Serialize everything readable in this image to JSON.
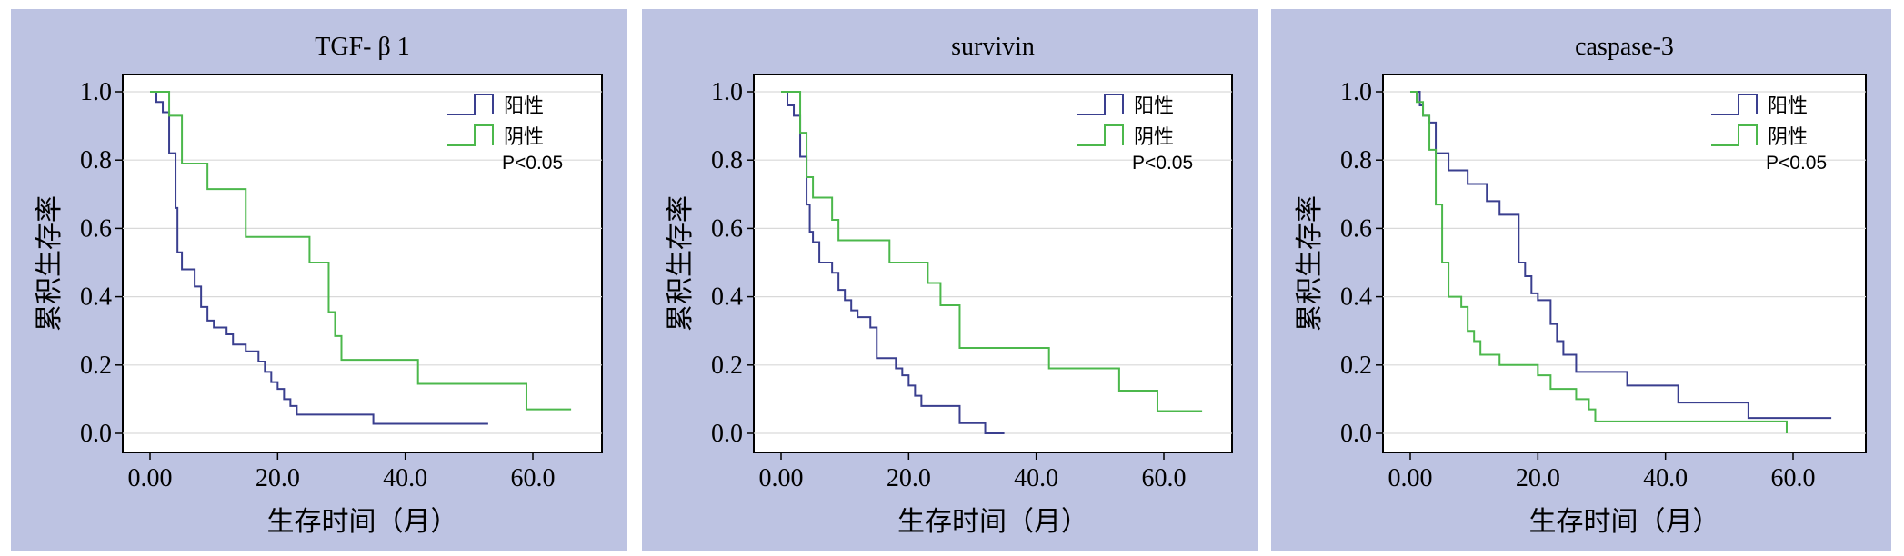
{
  "chart_data": [
    {
      "type": "line",
      "title": "TGF- β 1",
      "xlabel": "生存时间（月）",
      "ylabel": "累积生存率",
      "xlim": [
        0,
        60
      ],
      "ylim": [
        0,
        1.0
      ],
      "xticks": [
        "0.00",
        "20.0",
        "40.0",
        "60.0"
      ],
      "yticks": [
        "0.0",
        "0.2",
        "0.4",
        "0.6",
        "0.8",
        "1.0"
      ],
      "legend": "top-right",
      "pvalue": "P<0.05",
      "series": [
        {
          "name": "阳性",
          "color": "#3a3f8f",
          "x": [
            0,
            1,
            2,
            3,
            4,
            4.3,
            5,
            6,
            7,
            8,
            9,
            10,
            12,
            13,
            15,
            17,
            18,
            19,
            20,
            21,
            22,
            23,
            35,
            53
          ],
          "y": [
            1.0,
            0.97,
            0.94,
            0.82,
            0.66,
            0.53,
            0.48,
            0.48,
            0.43,
            0.37,
            0.33,
            0.31,
            0.29,
            0.26,
            0.24,
            0.21,
            0.18,
            0.15,
            0.13,
            0.1,
            0.08,
            0.055,
            0.028,
            0.028
          ]
        },
        {
          "name": "阴性",
          "color": "#4cb84c",
          "x": [
            0,
            3,
            5,
            9,
            15,
            25,
            28,
            29,
            30,
            42,
            59,
            66
          ],
          "y": [
            1.0,
            0.93,
            0.79,
            0.715,
            0.575,
            0.5,
            0.355,
            0.285,
            0.215,
            0.145,
            0.07,
            0.07
          ]
        }
      ]
    },
    {
      "type": "line",
      "title": "survivin",
      "xlabel": "生存时间（月）",
      "ylabel": "累积生存率",
      "xlim": [
        0,
        60
      ],
      "ylim": [
        0,
        1.0
      ],
      "xticks": [
        "0.00",
        "20.0",
        "40.0",
        "60.0"
      ],
      "yticks": [
        "0.0",
        "0.2",
        "0.4",
        "0.6",
        "0.8",
        "1.0"
      ],
      "legend": "top-right",
      "pvalue": "P<0.05",
      "series": [
        {
          "name": "阳性",
          "color": "#3a3f8f",
          "x": [
            0,
            1,
            2,
            3,
            4,
            4.5,
            5,
            6,
            8,
            9,
            10,
            11,
            12,
            14,
            15,
            18,
            19,
            20,
            21,
            22,
            23,
            28,
            32,
            35
          ],
          "y": [
            1.0,
            0.96,
            0.93,
            0.81,
            0.67,
            0.59,
            0.56,
            0.5,
            0.47,
            0.42,
            0.39,
            0.36,
            0.34,
            0.31,
            0.22,
            0.19,
            0.17,
            0.14,
            0.11,
            0.08,
            0.08,
            0.03,
            0.0,
            0.0
          ]
        },
        {
          "name": "阴性",
          "color": "#4cb84c",
          "x": [
            0,
            3,
            4,
            5,
            8,
            9,
            14,
            17,
            23,
            25,
            28,
            42,
            53,
            59,
            66
          ],
          "y": [
            1.0,
            0.88,
            0.75,
            0.69,
            0.625,
            0.565,
            0.565,
            0.5,
            0.44,
            0.375,
            0.25,
            0.19,
            0.125,
            0.065,
            0.065
          ]
        }
      ]
    },
    {
      "type": "line",
      "title": "caspase-3",
      "xlabel": "生存时间（月）",
      "ylabel": "累积生存率",
      "xlim": [
        0,
        60
      ],
      "ylim": [
        0,
        1.0
      ],
      "xticks": [
        "0.00",
        "20.0",
        "40.0",
        "60.0"
      ],
      "yticks": [
        "0.0",
        "0.2",
        "0.4",
        "0.6",
        "0.8",
        "1.0"
      ],
      "legend": "top-right",
      "pvalue": "P<0.05",
      "series": [
        {
          "name": "阳性",
          "color": "#3a3f8f",
          "x": [
            0,
            1.5,
            2,
            3,
            4,
            6,
            9,
            12,
            14,
            17,
            18,
            19,
            20,
            22,
            23,
            24,
            26,
            28,
            34,
            42,
            53,
            66
          ],
          "y": [
            1.0,
            0.96,
            0.93,
            0.91,
            0.82,
            0.77,
            0.73,
            0.68,
            0.64,
            0.5,
            0.46,
            0.41,
            0.39,
            0.32,
            0.27,
            0.23,
            0.18,
            0.18,
            0.14,
            0.09,
            0.045,
            0.045
          ]
        },
        {
          "name": "阴性",
          "color": "#4cb84c",
          "x": [
            0,
            1,
            2,
            3,
            4,
            5,
            6,
            8,
            9,
            10,
            11,
            14,
            16,
            20,
            22,
            26,
            28,
            29,
            30,
            59
          ],
          "y": [
            1.0,
            0.97,
            0.93,
            0.83,
            0.67,
            0.5,
            0.4,
            0.37,
            0.3,
            0.27,
            0.23,
            0.2,
            0.2,
            0.17,
            0.13,
            0.1,
            0.07,
            0.035,
            0.035,
            0.0
          ]
        }
      ]
    }
  ]
}
